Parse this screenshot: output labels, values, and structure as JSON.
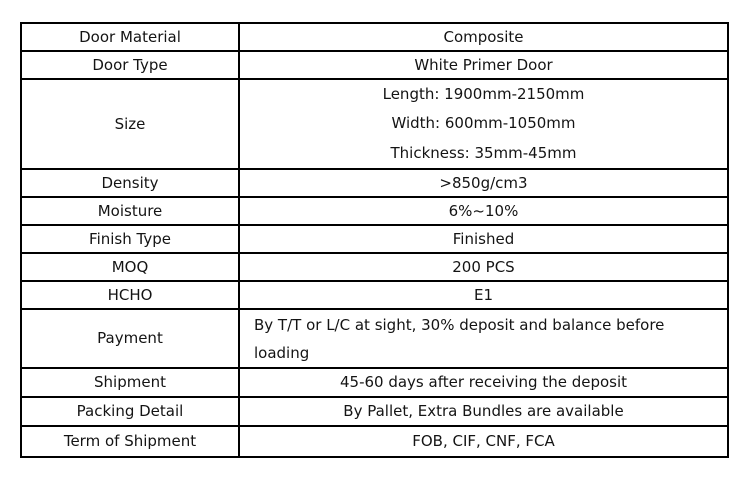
{
  "table": {
    "colors": {
      "border": "#000000",
      "text": "#141414",
      "background": "#ffffff"
    },
    "rows": [
      {
        "label": "Door Material",
        "value": "Composite"
      },
      {
        "label": "Door Type",
        "value": "White Primer Door"
      },
      {
        "label": "Size",
        "lines": [
          "Length: 1900mm-2150mm",
          "Width: 600mm-1050mm",
          "Thickness: 35mm-45mm"
        ]
      },
      {
        "label": "Density",
        "value": ">850g/cm3"
      },
      {
        "label": "Moisture",
        "value": "6%~10%"
      },
      {
        "label": "Finish Type",
        "value": "Finished"
      },
      {
        "label": "MOQ",
        "value": "200 PCS"
      },
      {
        "label": "HCHO",
        "value": "E1"
      },
      {
        "label": "Payment",
        "value": "By T/T or L/C at sight, 30% deposit and balance before loading"
      },
      {
        "label": "Shipment",
        "value": "45-60 days after receiving the deposit"
      },
      {
        "label": "Packing Detail",
        "value": "By Pallet, Extra Bundles are available"
      },
      {
        "label": "Term of Shipment",
        "value": "FOB, CIF, CNF, FCA"
      }
    ]
  }
}
